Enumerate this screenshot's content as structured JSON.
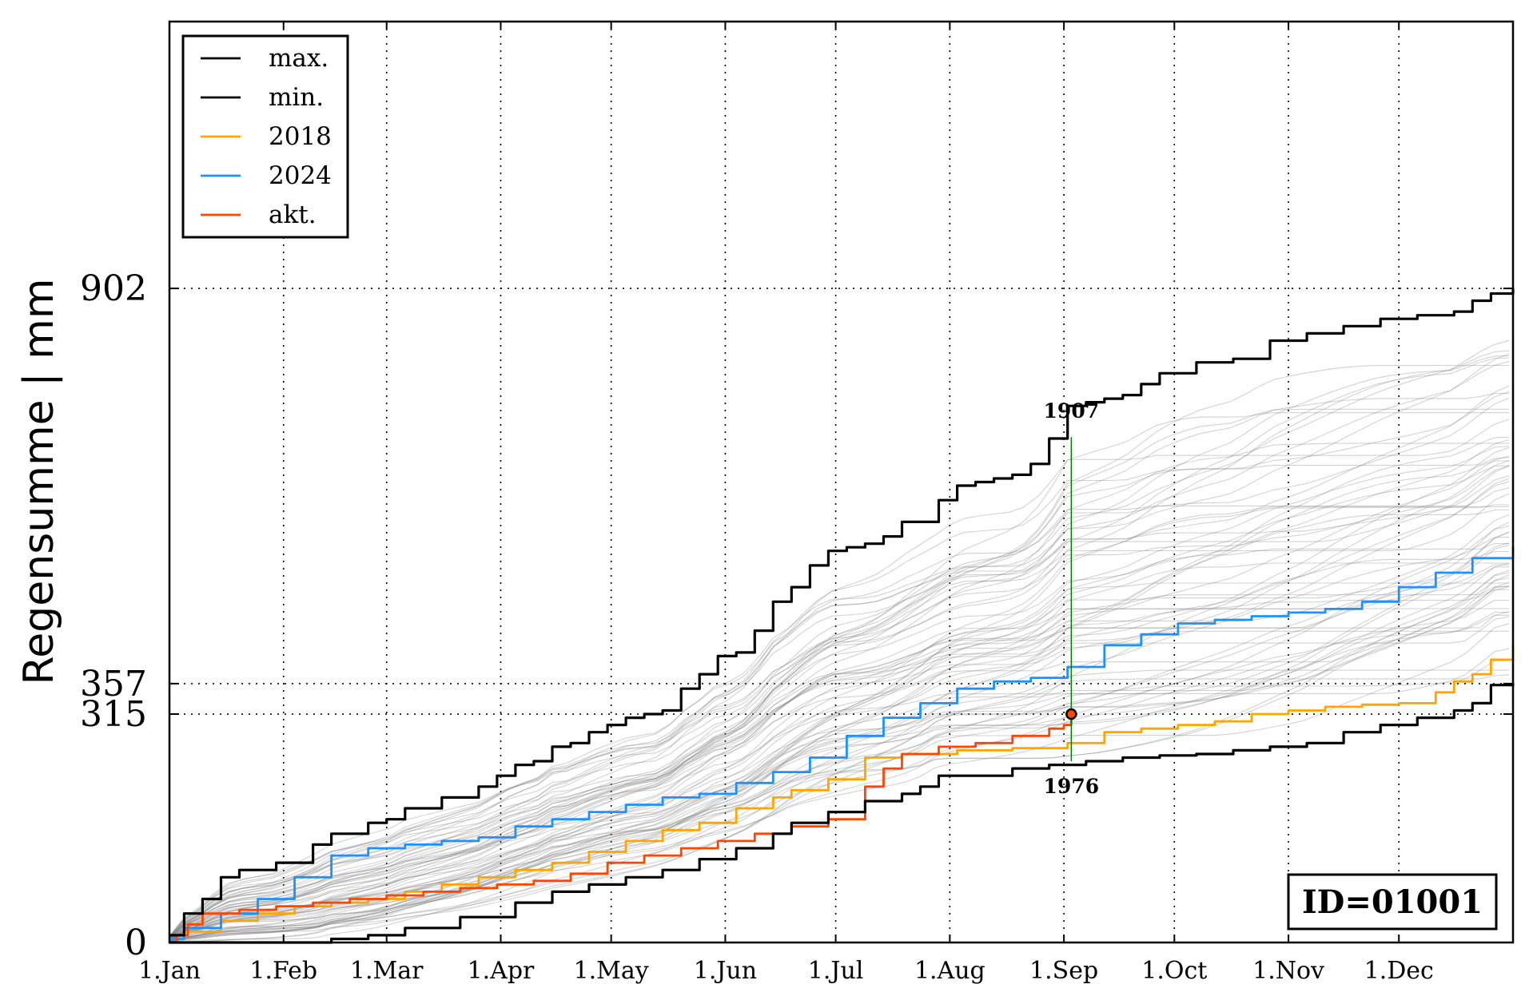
{
  "chart_data": {
    "type": "line",
    "ylabel": "Regensumme | mm",
    "x_axis": "day of year",
    "xlim": [
      1,
      366
    ],
    "ylim": [
      0,
      1270
    ],
    "x_ticks": [
      {
        "label": "1.Jan",
        "day": 1
      },
      {
        "label": "1.Feb",
        "day": 32
      },
      {
        "label": "1.Mar",
        "day": 60
      },
      {
        "label": "1.Apr",
        "day": 91
      },
      {
        "label": "1.May",
        "day": 121
      },
      {
        "label": "1.Jun",
        "day": 152
      },
      {
        "label": "1.Jul",
        "day": 182
      },
      {
        "label": "1.Aug",
        "day": 213
      },
      {
        "label": "1.Sep",
        "day": 244
      },
      {
        "label": "1.Oct",
        "day": 274
      },
      {
        "label": "1.Nov",
        "day": 305
      },
      {
        "label": "1.Dec",
        "day": 335
      }
    ],
    "y_ticks": [
      {
        "label": "0",
        "value": 0
      },
      {
        "label": "315",
        "value": 315
      },
      {
        "label": "357",
        "value": 357
      },
      {
        "label": "902",
        "value": 902
      }
    ],
    "grid": true,
    "legend_position": "top-left",
    "series": [
      {
        "name": "max.",
        "color": "#000000",
        "x": [
          1,
          5,
          10,
          15,
          20,
          30,
          40,
          45,
          55,
          60,
          65,
          75,
          85,
          90,
          95,
          100,
          105,
          110,
          115,
          120,
          125,
          130,
          135,
          140,
          145,
          150,
          155,
          160,
          165,
          170,
          175,
          180,
          185,
          190,
          195,
          200,
          210,
          215,
          220,
          225,
          230,
          235,
          240,
          245,
          250,
          255,
          260,
          265,
          270,
          280,
          290,
          300,
          310,
          320,
          330,
          340,
          350,
          355,
          360,
          366
        ],
        "y": [
          10,
          40,
          60,
          90,
          100,
          110,
          135,
          150,
          165,
          170,
          185,
          200,
          215,
          230,
          245,
          250,
          270,
          275,
          290,
          300,
          310,
          315,
          320,
          350,
          370,
          395,
          400,
          430,
          470,
          490,
          520,
          540,
          545,
          550,
          560,
          580,
          610,
          630,
          635,
          640,
          645,
          660,
          695,
          740,
          745,
          750,
          755,
          770,
          785,
          800,
          805,
          830,
          840,
          850,
          860,
          865,
          870,
          885,
          895,
          902
        ]
      },
      {
        "name": "min.",
        "color": "#000000",
        "x": [
          1,
          20,
          40,
          45,
          55,
          65,
          80,
          95,
          105,
          115,
          125,
          135,
          145,
          155,
          165,
          170,
          180,
          190,
          200,
          205,
          210,
          230,
          240,
          250,
          260,
          270,
          280,
          290,
          300,
          310,
          320,
          330,
          340,
          350,
          355,
          360,
          366
        ],
        "y": [
          0,
          0,
          0,
          5,
          10,
          20,
          35,
          55,
          70,
          80,
          90,
          100,
          115,
          130,
          150,
          165,
          180,
          195,
          205,
          215,
          230,
          240,
          245,
          250,
          255,
          258,
          260,
          265,
          270,
          275,
          290,
          300,
          310,
          320,
          330,
          355,
          357
        ]
      },
      {
        "name": "2018",
        "color": "#ffa500",
        "x": [
          1,
          5,
          15,
          25,
          35,
          45,
          55,
          65,
          75,
          85,
          95,
          105,
          115,
          125,
          135,
          145,
          155,
          165,
          170,
          180,
          190,
          200,
          215,
          230,
          245,
          255,
          265,
          275,
          285,
          295,
          305,
          315,
          325,
          335,
          345,
          350,
          355,
          360,
          366
        ],
        "y": [
          5,
          15,
          30,
          40,
          50,
          55,
          60,
          70,
          80,
          90,
          100,
          110,
          125,
          140,
          155,
          165,
          185,
          200,
          210,
          225,
          255,
          260,
          265,
          268,
          275,
          290,
          295,
          300,
          305,
          315,
          320,
          325,
          328,
          330,
          345,
          360,
          370,
          390,
          410
        ]
      },
      {
        "name": "2024",
        "color": "#1e90ff",
        "x": [
          1,
          5,
          15,
          25,
          35,
          45,
          55,
          65,
          75,
          85,
          95,
          105,
          115,
          125,
          135,
          145,
          155,
          165,
          175,
          185,
          195,
          205,
          215,
          225,
          235,
          245,
          255,
          265,
          275,
          285,
          295,
          305,
          315,
          325,
          335,
          345,
          355,
          366
        ],
        "y": [
          5,
          20,
          40,
          60,
          90,
          120,
          130,
          135,
          140,
          145,
          160,
          170,
          180,
          190,
          200,
          205,
          220,
          235,
          255,
          285,
          310,
          330,
          350,
          360,
          365,
          380,
          410,
          425,
          440,
          445,
          450,
          455,
          460,
          470,
          490,
          510,
          530,
          545
        ]
      },
      {
        "name": "akt.",
        "color": "#ff4500",
        "x": [
          1,
          3,
          6,
          10,
          20,
          30,
          40,
          50,
          60,
          70,
          80,
          90,
          100,
          110,
          120,
          130,
          140,
          150,
          160,
          170,
          180,
          190,
          195,
          200,
          210,
          220,
          230,
          240,
          244,
          246
        ],
        "y": [
          0,
          10,
          25,
          40,
          45,
          50,
          55,
          60,
          65,
          70,
          75,
          80,
          85,
          95,
          110,
          120,
          130,
          140,
          150,
          160,
          170,
          215,
          240,
          260,
          270,
          275,
          285,
          295,
          300,
          315
        ]
      }
    ],
    "background_years_note": "",
    "marker": {
      "x": 246,
      "y": 315
    },
    "vline": {
      "x": 246,
      "y_from": 250,
      "y_to": 697,
      "color": "#008000"
    },
    "annotations": [
      {
        "text": "1907",
        "x": 246,
        "y": 697
      },
      {
        "text": "1976",
        "x": 246,
        "y": 250
      }
    ],
    "id_box": {
      "text": "ID=01001"
    }
  }
}
